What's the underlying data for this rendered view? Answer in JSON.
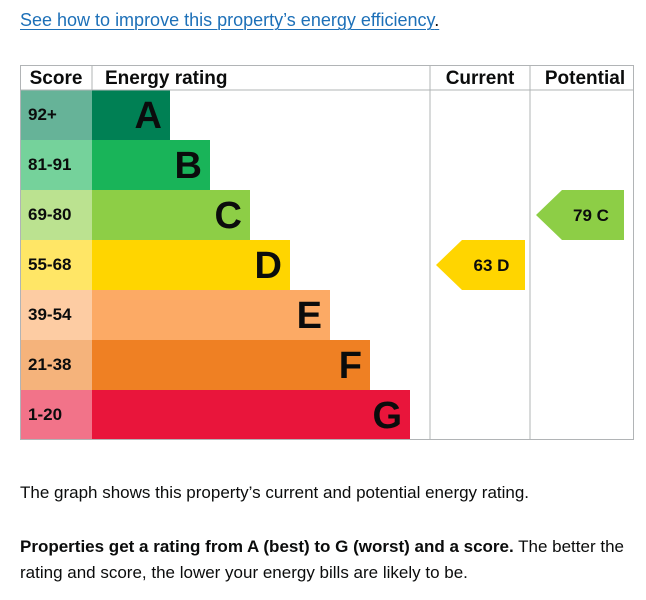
{
  "link": {
    "text": "See how to improve this property’s energy efficiency",
    "trailing": "."
  },
  "table": {
    "headers": {
      "score": "Score",
      "energy_rating": "Energy rating",
      "current": "Current",
      "potential": "Potential"
    },
    "bands": [
      {
        "score": "92+",
        "letter": "A",
        "color": "#008054",
        "score_bg": "#66b398"
      },
      {
        "score": "81-91",
        "letter": "B",
        "color": "#19b459",
        "score_bg": "#75d29b"
      },
      {
        "score": "69-80",
        "letter": "C",
        "color": "#8dce46",
        "score_bg": "#bbe290"
      },
      {
        "score": "55-68",
        "letter": "D",
        "color": "#ffd500",
        "score_bg": "#ffe666"
      },
      {
        "score": "39-54",
        "letter": "E",
        "color": "#fcaa65",
        "score_bg": "#fdcca3"
      },
      {
        "score": "21-38",
        "letter": "F",
        "color": "#ef8023",
        "score_bg": "#f5b37b"
      },
      {
        "score": "1-20",
        "letter": "G",
        "color": "#e9153b",
        "score_bg": "#f27389"
      }
    ],
    "current": {
      "label": "63 D",
      "score": 63,
      "band": "D",
      "color": "#ffd500"
    },
    "potential": {
      "label": "79 C",
      "score": 79,
      "band": "C",
      "color": "#8dce46"
    }
  },
  "text": {
    "para1": "The graph shows this property’s current and potential energy rating.",
    "para2_bold": "Properties get a rating from A (best) to G (worst) and a score.",
    "para2_rest": " The better the rating and score, the lower your energy bills are likely to be."
  }
}
